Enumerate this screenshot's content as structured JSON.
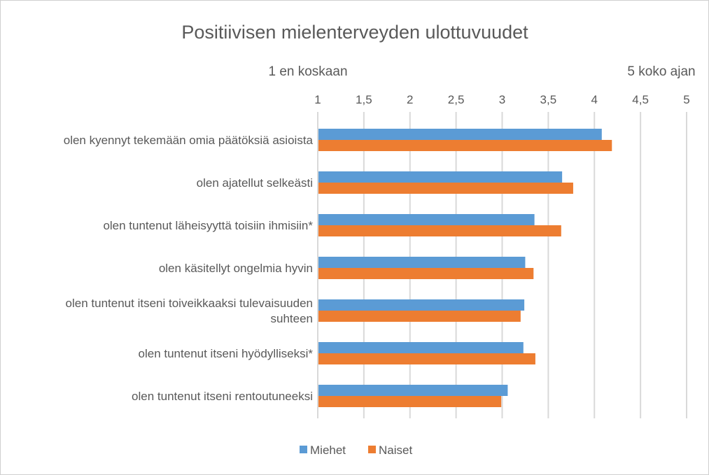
{
  "chart_data": {
    "type": "bar",
    "orientation": "horizontal",
    "title": "Positiivisen mielenterveyden ulottuvuudet",
    "axis_annotations": {
      "left": "1 en koskaan",
      "right": "5 koko ajan"
    },
    "xlim": [
      1,
      5
    ],
    "ticks": [
      "1",
      "1,5",
      "2",
      "2,5",
      "3",
      "3,5",
      "4",
      "4,5",
      "5"
    ],
    "tick_values": [
      1,
      1.5,
      2,
      2.5,
      3,
      3.5,
      4,
      4.5,
      5
    ],
    "grid": true,
    "legend_position": "bottom",
    "categories": [
      "olen kyennyt tekemään omia päätöksiä asioista",
      "olen ajatellut selkeästi",
      "olen tuntenut läheisyyttä toisiin ihmisiin*",
      "olen käsitellyt ongelmia hyvin",
      "olen tuntenut itseni toiveikkaaksi tulevaisuuden suhteen",
      "olen tuntenut itseni hyödylliseksi*",
      "olen tuntenut itseni rentoutuneeksi"
    ],
    "category_lines": [
      [
        "olen kyennyt tekemään omia päätöksiä asioista"
      ],
      [
        "olen ajatellut selkeästi"
      ],
      [
        "olen tuntenut läheisyyttä toisiin ihmisiin*"
      ],
      [
        "olen käsitellyt ongelmia hyvin"
      ],
      [
        "olen tuntenut itseni toiveikkaaksi tulevaisuuden",
        "suhteen"
      ],
      [
        "olen tuntenut itseni hyödylliseksi*"
      ],
      [
        "olen tuntenut itseni rentoutuneeksi"
      ]
    ],
    "series": [
      {
        "name": "Miehet",
        "color": "#5b9bd5",
        "values": [
          4.08,
          3.65,
          3.35,
          3.25,
          3.24,
          3.23,
          3.06
        ]
      },
      {
        "name": "Naiset",
        "color": "#ed7d31",
        "values": [
          4.19,
          3.77,
          3.64,
          3.34,
          3.2,
          3.36,
          2.99
        ]
      }
    ]
  }
}
